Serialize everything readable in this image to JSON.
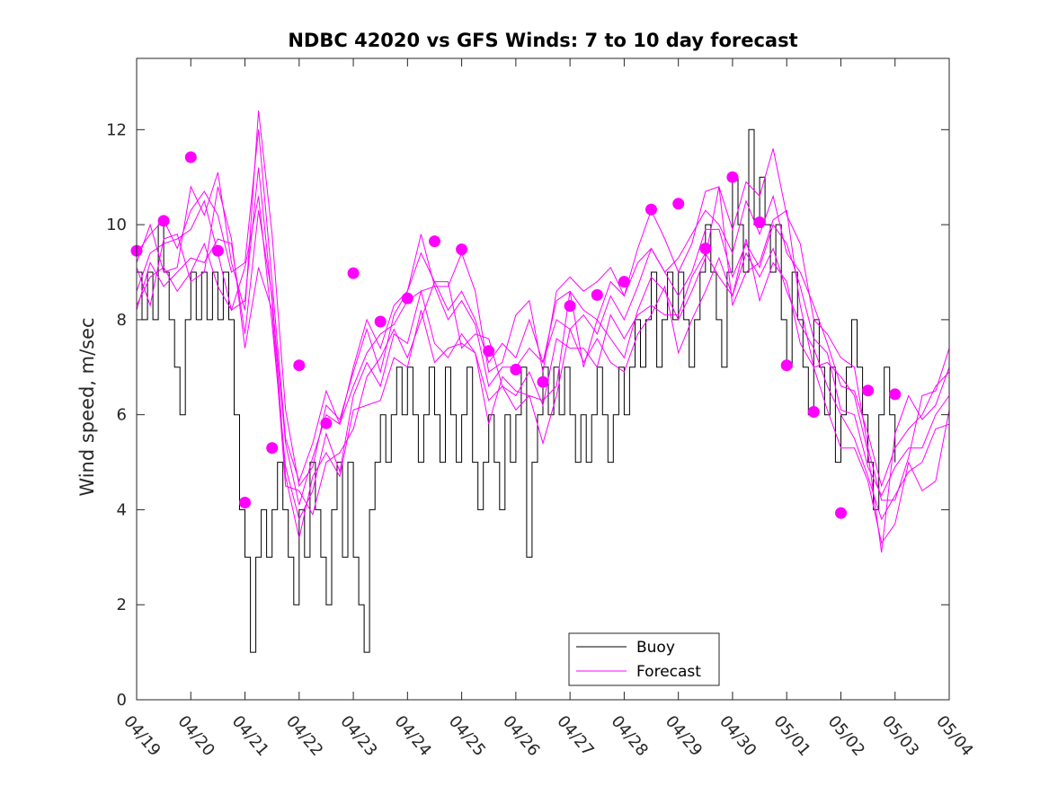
{
  "chart_data": {
    "type": "line",
    "title": "NDBC 42020 vs GFS Winds: 7 to 10 day forecast",
    "xlabel": "",
    "ylabel": "Wind speed, m/sec",
    "ylim": [
      0,
      13.5
    ],
    "yticks": [
      0,
      2,
      4,
      6,
      8,
      10,
      12
    ],
    "xlim_days": [
      0,
      15
    ],
    "xtick_labels": [
      "04/19",
      "04/20",
      "04/21",
      "04/22",
      "04/23",
      "04/24",
      "04/25",
      "04/26",
      "04/27",
      "04/28",
      "04/29",
      "04/30",
      "05/01",
      "05/02",
      "05/03",
      "05/04"
    ],
    "grid": false,
    "legend_position": "bottom-center",
    "colors": {
      "buoy": "#000000",
      "forecast": "#ff00ff"
    },
    "series": [
      {
        "name": "Buoy",
        "style": "line",
        "x": [
          0.0,
          0.1,
          0.2,
          0.3,
          0.4,
          0.5,
          0.6,
          0.7,
          0.8,
          0.9,
          1.0,
          1.1,
          1.2,
          1.3,
          1.4,
          1.5,
          1.6,
          1.7,
          1.8,
          1.9,
          2.0,
          2.1,
          2.2,
          2.3,
          2.4,
          2.5,
          2.6,
          2.7,
          2.8,
          2.9,
          3.0,
          3.1,
          3.2,
          3.3,
          3.4,
          3.5,
          3.6,
          3.7,
          3.8,
          3.9,
          4.0,
          4.1,
          4.2,
          4.3,
          4.4,
          4.5,
          4.6,
          4.7,
          4.8,
          4.9,
          5.0,
          5.1,
          5.2,
          5.3,
          5.4,
          5.5,
          5.6,
          5.7,
          5.8,
          5.9,
          6.0,
          6.1,
          6.2,
          6.3,
          6.4,
          6.5,
          6.6,
          6.7,
          6.8,
          6.9,
          7.0,
          7.1,
          7.2,
          7.3,
          7.4,
          7.5,
          7.6,
          7.7,
          7.8,
          7.9,
          8.0,
          8.1,
          8.2,
          8.3,
          8.4,
          8.5,
          8.6,
          8.7,
          8.8,
          8.9,
          9.0,
          9.1,
          9.2,
          9.3,
          9.4,
          9.5,
          9.6,
          9.7,
          9.8,
          9.9,
          10.0,
          10.1,
          10.2,
          10.3,
          10.4,
          10.5,
          10.6,
          10.7,
          10.8,
          10.9,
          11.0,
          11.1,
          11.2,
          11.3,
          11.4,
          11.5,
          11.6,
          11.7,
          11.8,
          11.9,
          12.0,
          12.1,
          12.2,
          12.3,
          12.4,
          12.5,
          12.6,
          12.7,
          12.8,
          12.9,
          13.0,
          13.1,
          13.2,
          13.3,
          13.4,
          13.5,
          13.6,
          13.7,
          13.8,
          13.9,
          14.0
        ],
        "values": [
          9,
          8,
          9,
          8,
          10,
          9,
          8,
          7,
          6,
          8,
          9,
          8,
          9,
          8,
          9,
          8,
          9,
          8,
          6,
          4,
          3,
          1,
          3,
          4,
          3,
          4,
          5,
          4,
          3,
          2,
          4,
          3,
          5,
          4,
          3,
          2,
          4,
          5,
          3,
          5,
          3,
          2,
          1,
          4,
          5,
          6,
          5,
          6,
          7,
          6,
          7,
          6,
          5,
          6,
          7,
          6,
          5,
          7,
          6,
          5,
          6,
          7,
          5,
          4,
          5,
          6,
          5,
          4,
          6,
          5,
          6,
          7,
          3,
          5,
          6,
          7,
          6,
          7,
          6,
          7,
          6,
          5,
          6,
          5,
          6,
          7,
          6,
          5,
          6,
          7,
          6,
          7,
          8,
          7,
          8,
          9,
          7,
          8,
          9,
          8,
          9,
          8,
          7,
          8,
          9,
          10,
          9,
          8,
          7,
          9,
          11,
          10,
          9,
          12,
          10,
          11,
          10,
          9,
          10,
          8,
          7,
          9,
          8,
          7,
          6,
          8,
          7,
          6,
          7,
          5,
          6,
          7,
          8,
          7,
          6,
          5,
          4,
          6,
          7,
          6,
          5
        ]
      },
      {
        "name": "Forecast",
        "style": "line",
        "x": [
          0.0,
          0.25,
          0.5,
          0.75,
          1.0,
          1.25,
          1.5,
          1.75,
          2.0,
          2.25,
          2.5,
          2.75,
          3.0,
          3.25,
          3.5,
          3.75,
          4.0,
          4.25,
          4.5,
          4.75,
          5.0,
          5.25,
          5.5,
          5.75,
          6.0,
          6.25,
          6.5,
          6.75,
          7.0,
          7.25,
          7.5,
          7.75,
          8.0,
          8.25,
          8.5,
          8.75,
          9.0,
          9.25,
          9.5,
          9.75,
          10.0,
          10.25,
          10.5,
          10.75,
          11.0,
          11.25,
          11.5,
          11.75,
          12.0,
          12.25,
          12.5,
          12.75,
          13.0,
          13.25,
          13.5,
          13.75,
          14.0,
          14.25,
          14.5,
          14.75,
          15.0
        ],
        "values": [
          9.4,
          9.8,
          10.1,
          9.5,
          10.3,
          10.7,
          10.2,
          9.0,
          9.2,
          12.0,
          8.8,
          5.5,
          4.6,
          5.4,
          6.5,
          5.8,
          7.0,
          8.0,
          7.4,
          8.3,
          8.6,
          9.4,
          8.8,
          8.2,
          8.6,
          8.0,
          7.1,
          7.5,
          7.2,
          8.0,
          7.1,
          8.4,
          8.6,
          8.2,
          8.0,
          8.8,
          8.5,
          9.2,
          9.5,
          9.0,
          9.3,
          9.8,
          10.3,
          10.0,
          9.4,
          10.5,
          9.8,
          10.6,
          9.4,
          9.0,
          8.3,
          7.5,
          6.6,
          6.5,
          5.6,
          4.5,
          5.3,
          5.7,
          6.0,
          6.6,
          6.9
        ]
      },
      {
        "name": "Forecast",
        "style": "line",
        "x": [
          0.0,
          0.25,
          0.5,
          0.75,
          1.0,
          1.25,
          1.5,
          1.75,
          2.0,
          2.25,
          2.5,
          2.75,
          3.0,
          3.25,
          3.5,
          3.75,
          4.0,
          4.25,
          4.5,
          4.75,
          5.0,
          5.25,
          5.5,
          5.75,
          6.0,
          6.25,
          6.5,
          6.75,
          7.0,
          7.25,
          7.5,
          7.75,
          8.0,
          8.25,
          8.5,
          8.75,
          9.0,
          9.25,
          9.5,
          9.75,
          10.0,
          10.25,
          10.5,
          10.75,
          11.0,
          11.25,
          11.5,
          11.75,
          12.0,
          12.25,
          12.5,
          12.75,
          13.0,
          13.25,
          13.5,
          13.75,
          14.0,
          14.25,
          14.5,
          14.75,
          15.0
        ],
        "values": [
          8.3,
          8.9,
          9.1,
          8.6,
          9.0,
          9.6,
          8.7,
          8.2,
          9.1,
          10.6,
          7.9,
          4.9,
          3.8,
          4.4,
          5.6,
          4.8,
          6.4,
          7.1,
          6.6,
          7.7,
          7.5,
          8.6,
          7.5,
          7.2,
          7.7,
          7.3,
          6.3,
          6.6,
          6.4,
          6.9,
          6.2,
          7.6,
          7.4,
          7.4,
          7.0,
          8.1,
          7.6,
          8.1,
          8.3,
          8.1,
          8.1,
          8.9,
          9.4,
          8.9,
          8.5,
          9.4,
          8.9,
          9.5,
          8.6,
          7.9,
          7.4,
          6.6,
          6.0,
          5.5,
          4.7,
          3.8,
          4.3,
          4.8,
          5.0,
          5.7,
          5.8
        ]
      },
      {
        "name": "Forecast",
        "style": "line",
        "x": [
          0.0,
          0.25,
          0.5,
          0.75,
          1.0,
          1.25,
          1.5,
          1.75,
          2.0,
          2.25,
          2.5,
          2.75,
          3.0,
          3.25,
          3.5,
          3.75,
          4.0,
          4.25,
          4.5,
          4.75,
          5.0,
          5.25,
          5.5,
          5.75,
          6.0,
          6.25,
          6.5,
          6.75,
          7.0,
          7.25,
          7.5,
          7.75,
          8.0,
          8.25,
          8.5,
          8.75,
          9.0,
          9.25,
          9.5,
          9.75,
          10.0,
          10.25,
          10.5,
          10.75,
          11.0,
          11.25,
          11.5,
          11.75,
          12.0,
          12.25,
          12.5,
          12.75,
          13.0,
          13.25,
          13.5,
          13.75,
          14.0,
          14.25,
          14.5,
          14.75,
          15.0
        ],
        "values": [
          9.1,
          8.3,
          9.7,
          9.8,
          8.8,
          9.0,
          10.8,
          9.7,
          7.4,
          9.1,
          8.2,
          4.5,
          4.4,
          3.9,
          5.0,
          5.2,
          5.7,
          6.8,
          7.2,
          7.8,
          7.2,
          8.0,
          8.8,
          8.8,
          7.4,
          7.7,
          7.6,
          6.6,
          6.1,
          6.4,
          6.3,
          6.6,
          8.6,
          7.0,
          8.0,
          7.6,
          7.2,
          8.2,
          8.9,
          8.6,
          8.0,
          8.6,
          9.3,
          10.8,
          8.3,
          9.0,
          9.2,
          10.1,
          10.3,
          8.3,
          7.0,
          7.1,
          6.8,
          6.4,
          5.2,
          3.1,
          5.6,
          6.4,
          5.9,
          6.2,
          7.0
        ]
      },
      {
        "name": "Forecast",
        "style": "line",
        "x": [
          0.0,
          0.25,
          0.5,
          0.75,
          1.0,
          1.25,
          1.5,
          1.75,
          2.0,
          2.25,
          2.5,
          2.75,
          3.0,
          3.25,
          3.5,
          3.75,
          4.0,
          4.25,
          4.5,
          4.75,
          5.0,
          5.25,
          5.5,
          5.75,
          6.0,
          6.25,
          6.5,
          6.75,
          7.0,
          7.25,
          7.5,
          7.75,
          8.0,
          8.25,
          8.5,
          8.75,
          9.0,
          9.25,
          9.5,
          9.75,
          10.0,
          10.25,
          10.5,
          10.75,
          11.0,
          11.25,
          11.5,
          11.75,
          12.0,
          12.25,
          12.5,
          12.75,
          13.0,
          13.25,
          13.5,
          13.75,
          14.0,
          14.25,
          14.5,
          14.75,
          15.0
        ],
        "values": [
          8.6,
          9.4,
          9.6,
          9.7,
          9.9,
          10.5,
          9.4,
          8.2,
          8.4,
          11.2,
          8.4,
          5.4,
          4.1,
          5.1,
          6.0,
          5.8,
          6.6,
          7.3,
          7.7,
          7.9,
          8.4,
          8.6,
          8.7,
          8.0,
          8.4,
          7.9,
          6.6,
          7.0,
          7.0,
          7.4,
          7.1,
          8.0,
          7.8,
          8.1,
          7.7,
          8.5,
          8.0,
          8.7,
          9.5,
          9.0,
          8.5,
          9.0,
          9.9,
          9.9,
          8.9,
          9.6,
          9.1,
          10.0,
          9.6,
          8.7,
          7.6,
          7.3,
          6.1,
          6.0,
          4.9,
          4.3,
          4.9,
          5.3,
          5.3,
          6.0,
          6.4
        ]
      },
      {
        "name": "Forecast",
        "style": "line",
        "x": [
          0.0,
          0.25,
          0.5,
          0.75,
          1.0,
          1.25,
          1.5,
          1.75,
          2.0,
          2.25,
          2.5,
          2.75,
          3.0,
          3.25,
          3.5,
          3.75,
          4.0,
          4.25,
          4.5,
          4.75,
          5.0,
          5.25,
          5.5,
          5.75,
          6.0,
          6.25,
          6.5,
          6.75,
          7.0,
          7.25,
          7.5,
          7.75,
          8.0,
          8.25,
          8.5,
          8.75,
          9.0,
          9.25,
          9.5,
          9.75,
          10.0,
          10.25,
          10.5,
          10.75,
          11.0,
          11.25,
          11.5,
          11.75,
          12.0,
          12.25,
          12.5,
          12.75,
          13.0,
          13.25,
          13.5,
          13.75,
          14.0,
          14.25,
          14.5,
          14.75,
          15.0
        ],
        "values": [
          9.2,
          10.0,
          9.0,
          9.1,
          10.8,
          10.2,
          11.1,
          9.2,
          8.2,
          12.4,
          9.8,
          6.1,
          4.5,
          4.9,
          6.2,
          5.9,
          6.9,
          7.8,
          6.9,
          8.1,
          8.6,
          9.8,
          8.7,
          8.7,
          9.4,
          8.6,
          6.9,
          7.1,
          8.1,
          8.4,
          6.9,
          8.6,
          8.9,
          8.6,
          8.8,
          9.1,
          8.5,
          9.5,
          10.3,
          9.7,
          9.0,
          9.6,
          10.7,
          10.8,
          9.9,
          10.9,
          10.6,
          11.6,
          10.2,
          9.6,
          8.0,
          7.7,
          7.2,
          7.0,
          5.3,
          4.2,
          4.2,
          5.1,
          6.4,
          6.5,
          7.4
        ]
      },
      {
        "name": "Forecast",
        "style": "line",
        "x": [
          0.0,
          0.25,
          0.5,
          0.75,
          1.0,
          1.25,
          1.5,
          1.75,
          2.0,
          2.25,
          2.5,
          2.75,
          3.0,
          3.25,
          3.5,
          3.75,
          4.0,
          4.25,
          4.5,
          4.75,
          5.0,
          5.25,
          5.5,
          5.75,
          6.0,
          6.25,
          6.5,
          6.75,
          7.0,
          7.25,
          7.5,
          7.75,
          8.0,
          8.25,
          8.5,
          8.75,
          9.0,
          9.25,
          9.5,
          9.75,
          10.0,
          10.25,
          10.5,
          10.75,
          11.0,
          11.25,
          11.5,
          11.75,
          12.0,
          12.25,
          12.5,
          12.75,
          13.0,
          13.25,
          13.5,
          13.75,
          14.0,
          14.25,
          14.5,
          14.75,
          15.0
        ],
        "values": [
          8.2,
          9.2,
          8.7,
          9.0,
          9.3,
          9.2,
          9.7,
          9.6,
          7.7,
          10.3,
          8.5,
          4.7,
          3.4,
          4.7,
          5.2,
          4.7,
          6.1,
          6.2,
          6.3,
          7.2,
          7.0,
          8.2,
          7.1,
          7.4,
          7.5,
          7.3,
          5.8,
          6.8,
          6.5,
          6.4,
          5.4,
          6.4,
          7.8,
          7.1,
          7.6,
          7.1,
          6.9,
          7.7,
          8.1,
          8.7,
          7.3,
          8.0,
          8.6,
          9.3,
          8.5,
          9.7,
          8.4,
          9.2,
          8.8,
          7.5,
          7.0,
          6.1,
          5.3,
          5.3,
          4.6,
          3.3,
          3.7,
          5.0,
          4.4,
          4.6,
          6.1
        ]
      },
      {
        "name": "Forecast",
        "style": "markers",
        "x": [
          0.0,
          0.5,
          1.0,
          1.5,
          2.0,
          2.5,
          3.0,
          3.5,
          4.0,
          4.5,
          5.0,
          5.5,
          6.0,
          6.5,
          7.0,
          7.5,
          8.0,
          8.5,
          9.0,
          9.5,
          10.0,
          10.5,
          11.0,
          11.5,
          12.0,
          12.5,
          13.0,
          13.5,
          14.0
        ],
        "values": [
          9.45,
          10.08,
          11.42,
          9.45,
          4.15,
          5.3,
          7.04,
          5.82,
          8.98,
          7.96,
          8.45,
          9.65,
          9.48,
          7.34,
          6.95,
          6.69,
          8.29,
          8.52,
          8.8,
          10.32,
          10.44,
          9.5,
          11.0,
          10.05,
          7.04,
          6.06,
          3.93,
          6.51,
          6.43
        ]
      }
    ]
  }
}
